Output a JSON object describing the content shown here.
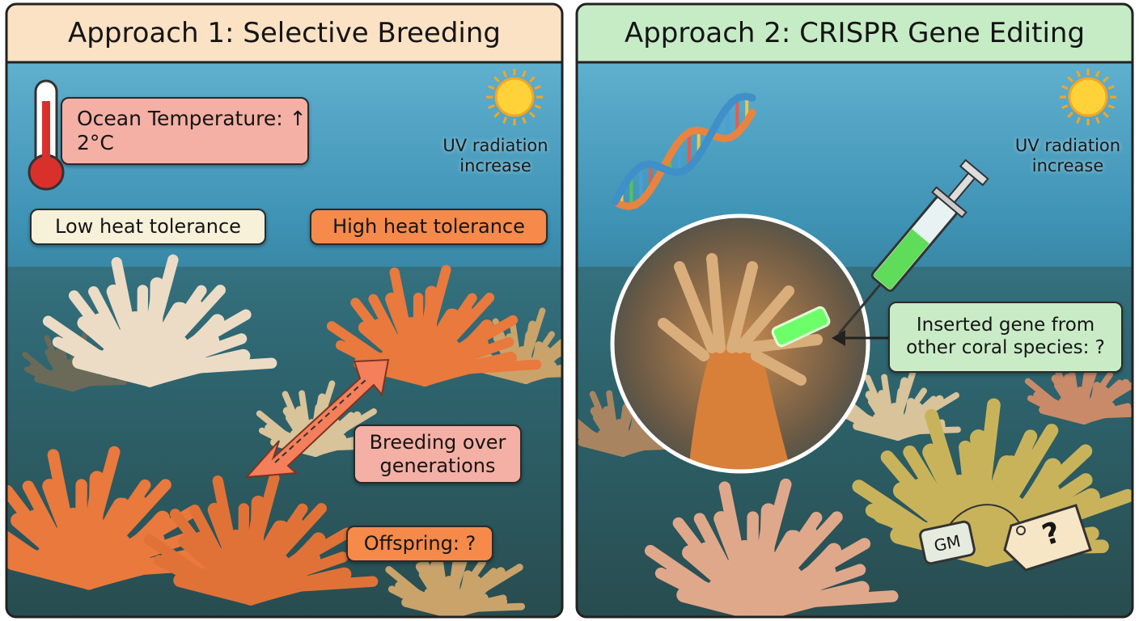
{
  "panels": [
    {
      "title": "Approach 1: Selective Breeding",
      "temperature": "Ocean Temperature: ↑ 2°C",
      "uv": "UV radiation increase",
      "low": "Low heat tolerance",
      "high": "High heat tolerance",
      "breeding": "Breeding over generations",
      "offspring": "Offspring: ?"
    },
    {
      "title": "Approach 2: CRISPR Gene Editing",
      "uv": "UV radiation increase",
      "inserted": "Inserted gene from other coral species: ?",
      "tag_gm": "GM",
      "tag_q": "?"
    }
  ]
}
